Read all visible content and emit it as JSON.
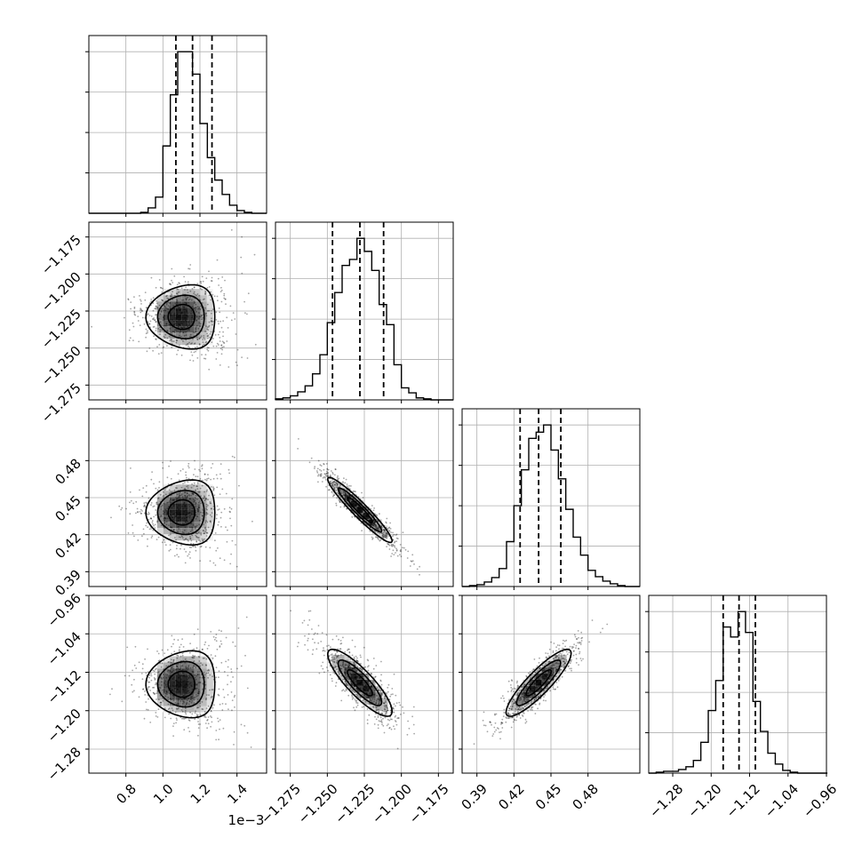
{
  "chart_data": {
    "type": "corner",
    "grid": true,
    "offset_text": "1e−3",
    "parameters": [
      {
        "range": [
          0.6,
          1.56
        ],
        "ticks": [
          0.8,
          1.0,
          1.2,
          1.4
        ],
        "tick_labels": [
          "0.8",
          "1.0",
          "1.2",
          "1.4"
        ],
        "quantiles": [
          1.07,
          1.16,
          1.265
        ],
        "hist_x": [
          0.6,
          0.64,
          0.68,
          0.72,
          0.76,
          0.8,
          0.84,
          0.88,
          0.92,
          0.96,
          1.0,
          1.04,
          1.08,
          1.12,
          1.16,
          1.2,
          1.24,
          1.28,
          1.32,
          1.36,
          1.4,
          1.44,
          1.48,
          1.52,
          1.56
        ],
        "hist_counts": [
          0,
          0,
          0,
          0,
          0,
          0,
          0,
          1,
          6,
          18,
          75,
          132,
          180,
          180,
          155,
          100,
          62,
          37,
          21,
          9,
          3,
          1,
          0,
          0
        ],
        "mode": [
          1.12,
          -1.229,
          0.438,
          -1.145
        ]
      },
      {
        "range": [
          -1.285,
          -1.165
        ],
        "ticks": [
          -1.275,
          -1.25,
          -1.225,
          -1.2,
          -1.175
        ],
        "tick_labels": [
          "−1.275",
          "−1.250",
          "−1.225",
          "−1.200",
          "−1.175"
        ],
        "quantiles": [
          -1.2465,
          -1.228,
          -1.212
        ],
        "hist_x": [
          -1.285,
          -1.28,
          -1.275,
          -1.27,
          -1.265,
          -1.26,
          -1.255,
          -1.25,
          -1.245,
          -1.24,
          -1.235,
          -1.23,
          -1.225,
          -1.22,
          -1.215,
          -1.21,
          -1.205,
          -1.2,
          -1.195,
          -1.19,
          -1.185,
          -1.18,
          -1.175,
          -1.17,
          -1.165
        ],
        "hist_counts": [
          1,
          2,
          4,
          8,
          14,
          26,
          45,
          77,
          107,
          134,
          140,
          161,
          148,
          129,
          95,
          75,
          35,
          12,
          7,
          2,
          1,
          0,
          0,
          0
        ],
        "mode": null
      },
      {
        "range": [
          0.378,
          0.522
        ],
        "ticks": [
          0.39,
          0.42,
          0.45,
          0.48
        ],
        "tick_labels": [
          "0.39",
          "0.42",
          "0.45",
          "0.48"
        ],
        "quantiles": [
          0.425,
          0.44,
          0.458
        ],
        "hist_x": [
          0.378,
          0.384,
          0.39,
          0.396,
          0.402,
          0.408,
          0.414,
          0.42,
          0.426,
          0.432,
          0.438,
          0.444,
          0.45,
          0.456,
          0.462,
          0.468,
          0.474,
          0.48,
          0.486,
          0.492,
          0.498,
          0.504,
          0.51,
          0.516,
          0.522
        ],
        "hist_counts": [
          0,
          1,
          2,
          5,
          10,
          20,
          50,
          90,
          130,
          165,
          172,
          180,
          152,
          120,
          86,
          55,
          35,
          18,
          11,
          6,
          3,
          1,
          0,
          0
        ],
        "mode": null
      },
      {
        "range": [
          -1.33,
          -0.96
        ],
        "ticks": [
          -1.28,
          -1.2,
          -1.12,
          -1.04,
          -0.96
        ],
        "tick_labels": [
          "−1.28",
          "−1.20",
          "−1.12",
          "−1.04",
          "−0.96"
        ],
        "quantiles": [
          -1.175,
          -1.142,
          -1.108
        ],
        "hist_x": [
          -1.33,
          -1.3145,
          -1.299,
          -1.2835,
          -1.268,
          -1.2525,
          -1.237,
          -1.2215,
          -1.206,
          -1.1905,
          -1.175,
          -1.1595,
          -1.144,
          -1.1285,
          -1.113,
          -1.0975,
          -1.082,
          -1.0665,
          -1.051,
          -1.0355,
          -1.02,
          -1.0045,
          -0.989,
          -0.9735,
          -0.958
        ],
        "hist_counts": [
          0,
          1,
          2,
          2,
          4,
          7,
          14,
          34,
          69,
          102,
          161,
          150,
          178,
          155,
          79,
          46,
          22,
          10,
          3,
          1,
          0,
          0,
          0,
          0
        ],
        "mode": null
      }
    ],
    "pairs": [
      {
        "row": 1,
        "col": 0,
        "center": [
          1.12,
          -1.229
        ],
        "sd": [
          0.12,
          0.014
        ],
        "rho": 0.0,
        "banana": true
      },
      {
        "row": 2,
        "col": 0,
        "center": [
          1.12,
          0.438
        ],
        "sd": [
          0.12,
          0.017
        ],
        "rho": 0.0,
        "banana": true
      },
      {
        "row": 2,
        "col": 1,
        "center": [
          -1.228,
          0.44
        ],
        "sd": [
          0.014,
          0.017
        ],
        "rho": -0.95,
        "banana": false
      },
      {
        "row": 3,
        "col": 0,
        "center": [
          1.12,
          -1.145
        ],
        "sd": [
          0.12,
          0.045
        ],
        "rho": 0.0,
        "banana": true
      },
      {
        "row": 3,
        "col": 1,
        "center": [
          -1.228,
          -1.142
        ],
        "sd": [
          0.014,
          0.045
        ],
        "rho": -0.85,
        "banana": false
      },
      {
        "row": 3,
        "col": 2,
        "center": [
          0.44,
          -1.142
        ],
        "sd": [
          0.017,
          0.045
        ],
        "rho": 0.88,
        "banana": false
      }
    ]
  }
}
